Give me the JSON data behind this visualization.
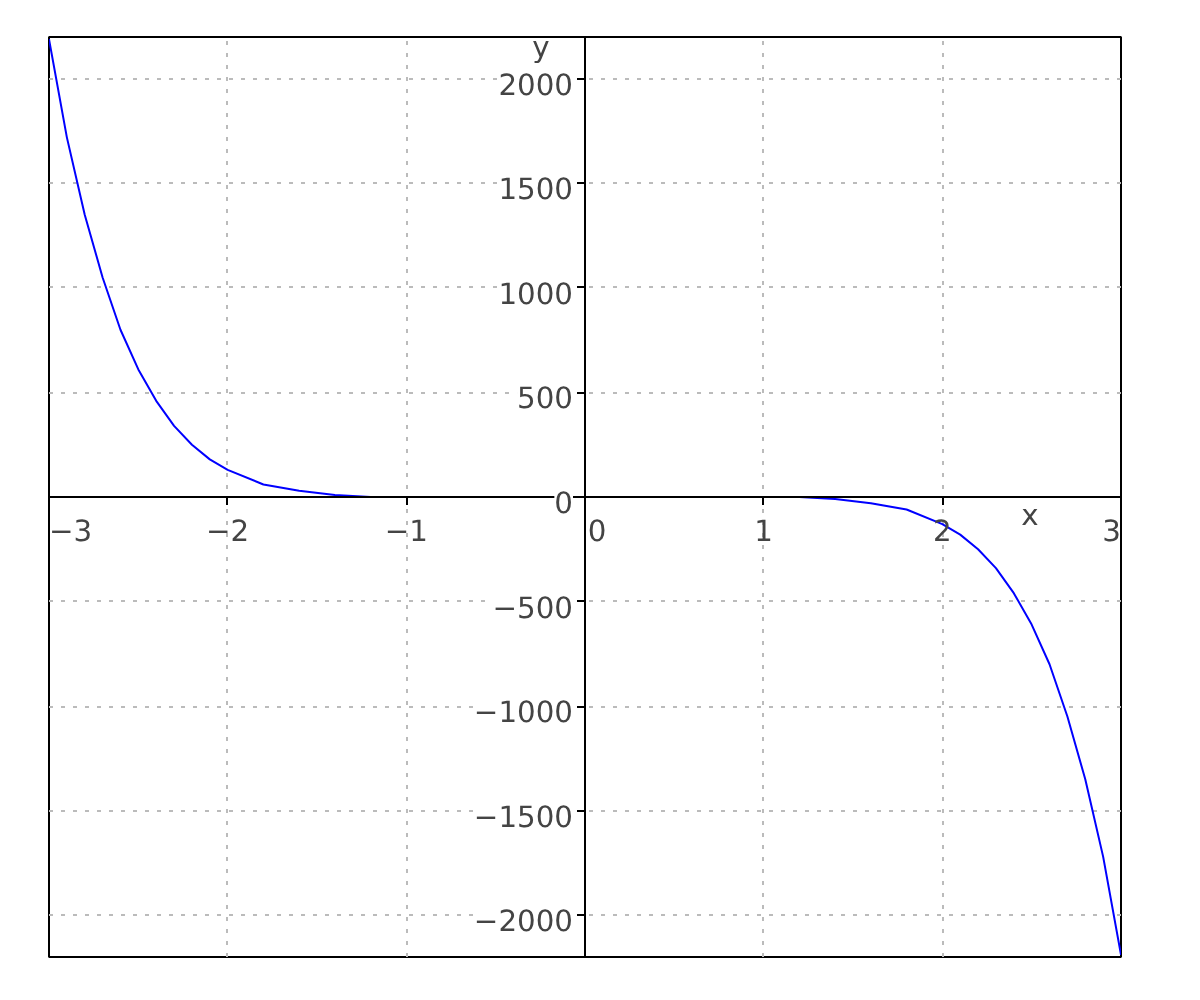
{
  "chart_data": {
    "type": "line",
    "xlabel": "x",
    "ylabel": "y",
    "x": [
      -3,
      -2.9,
      -2.8,
      -2.7,
      -2.6,
      -2.5,
      -2.4,
      -2.3,
      -2.2,
      -2.1,
      -2,
      -1.8,
      -1.6,
      -1.4,
      -1.2,
      -1,
      -0.5,
      0,
      0.5,
      1,
      1.2,
      1.4,
      1.6,
      1.8,
      2,
      2.1,
      2.2,
      2.3,
      2.4,
      2.5,
      2.6,
      2.7,
      2.8,
      2.9,
      3
    ],
    "series": [
      {
        "color": "#0000ff",
        "values": [
          2190,
          1720,
          1350,
          1050,
          800,
          610,
          460,
          340,
          250,
          180,
          130,
          60,
          30,
          10,
          0,
          0,
          0,
          0,
          0,
          0,
          0,
          -10,
          -30,
          -60,
          -130,
          -180,
          -250,
          -340,
          -460,
          -610,
          -800,
          -1050,
          -1350,
          -1720,
          -2190
        ]
      }
    ],
    "xlim": [
      -3,
      3
    ],
    "ylim": [
      -2200,
      2200
    ],
    "xticks": [
      -3,
      -2,
      -1,
      0,
      1,
      2,
      3
    ],
    "yticks": [
      -2000,
      -1500,
      -1000,
      -500,
      0,
      500,
      1000,
      1500,
      2000
    ],
    "grid": true,
    "line_style": "solid",
    "marker": "none"
  }
}
